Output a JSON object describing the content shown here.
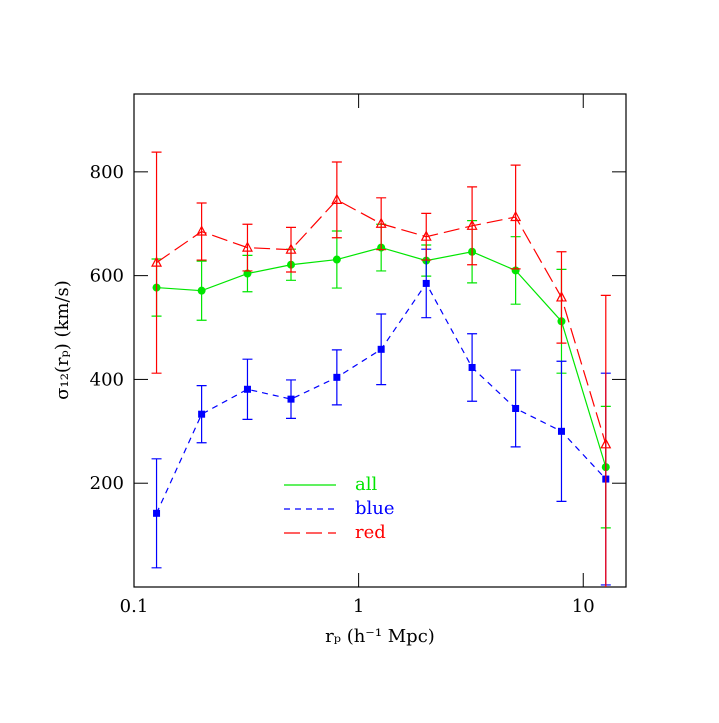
{
  "chart_data": {
    "type": "line",
    "x_label": "rₚ (h⁻¹ Mpc)",
    "y_label": "σ₁₂(rₚ) (km/s)",
    "x": [
      0.126,
      0.2,
      0.32,
      0.5,
      0.8,
      1.26,
      2.0,
      3.2,
      5.0,
      8.0,
      12.6
    ],
    "xscale": "log",
    "xlim": [
      0.1,
      15.5
    ],
    "xticks": [
      {
        "value": 0.1,
        "label": "0.1"
      },
      1,
      10
    ],
    "ylim": [
      0,
      950
    ],
    "yticks": [
      200,
      400,
      600,
      800
    ],
    "legend": "lower left",
    "series": [
      {
        "name": "all",
        "color": "#00e600",
        "dash": "solid",
        "marker": "circle",
        "values": [
          577,
          571,
          604,
          621,
          631,
          654,
          629,
          646,
          610,
          512,
          231
        ],
        "errors": [
          55,
          57,
          35,
          30,
          55,
          45,
          30,
          60,
          65,
          100,
          117
        ]
      },
      {
        "name": "blue",
        "color": "#0000ff",
        "dash": "short",
        "marker": "square",
        "values": [
          142,
          333,
          381,
          362,
          404,
          458,
          585,
          423,
          344,
          300,
          208
        ],
        "errors": [
          105,
          55,
          58,
          37,
          53,
          68,
          66,
          65,
          74,
          135,
          204
        ]
      },
      {
        "name": "red",
        "color": "#ff0000",
        "dash": "long",
        "marker": "triangle",
        "values": [
          625,
          685,
          654,
          650,
          746,
          700,
          675,
          696,
          713,
          558,
          275
        ],
        "errors": [
          213,
          55,
          45,
          43,
          73,
          50,
          45,
          75,
          100,
          88,
          287
        ]
      }
    ]
  }
}
